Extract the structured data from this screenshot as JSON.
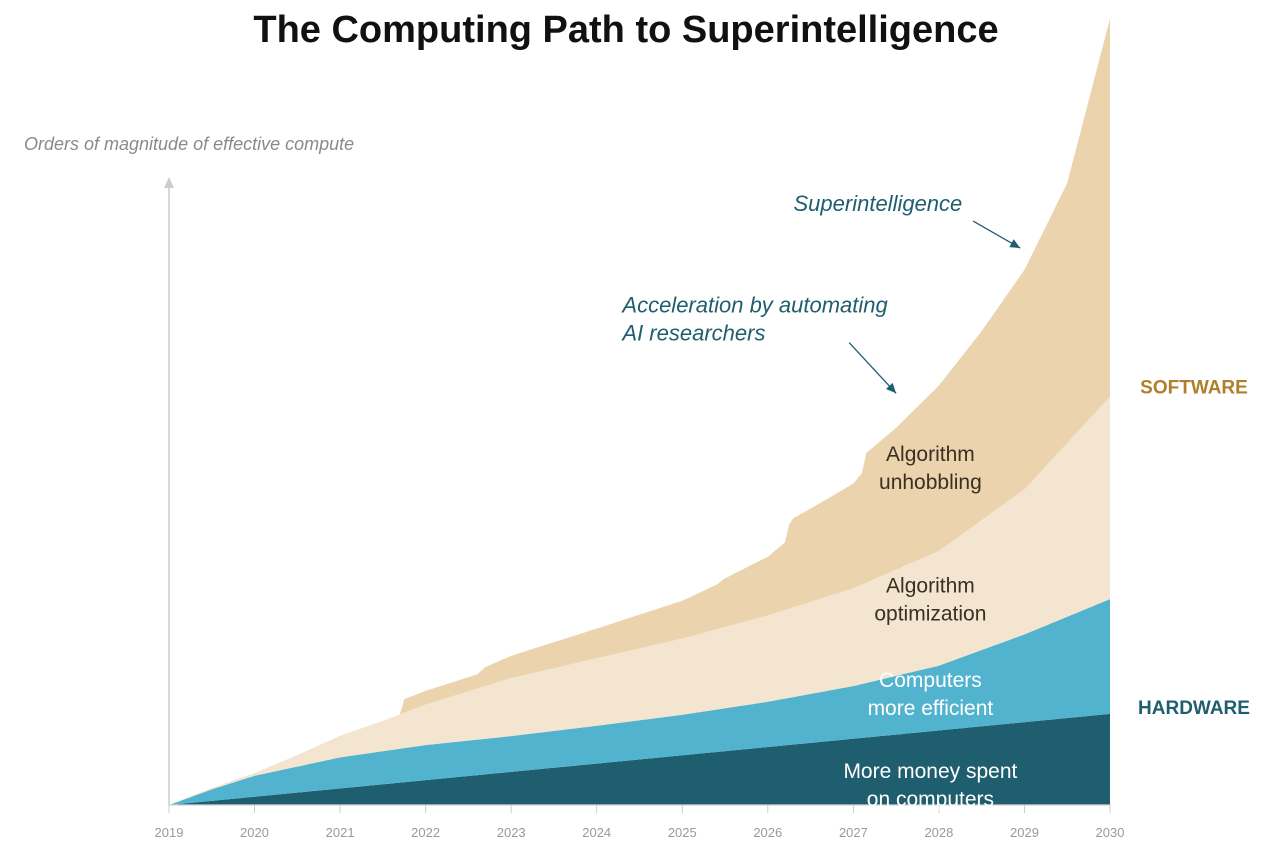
{
  "chart_data": {
    "type": "area",
    "title": "The Computing Path to Superintelligence",
    "ylabel": "Orders of magnitude of effective compute",
    "xlabel": "",
    "x_ticks": [
      "2019",
      "2020",
      "2021",
      "2022",
      "2023",
      "2024",
      "2025",
      "2026",
      "2027",
      "2028",
      "2029",
      "2030"
    ],
    "xlim": [
      2019,
      2030
    ],
    "ylim": [
      0,
      10
    ],
    "stacked": true,
    "grid": false,
    "series": [
      {
        "name": "More money spent on computers",
        "label_lines": [
          "More money spent",
          "on computers"
        ],
        "color": "#1f5e6e",
        "text_color": "#ffffff",
        "label_x": 2027.9,
        "label_y": 0.4,
        "x": [
          2019,
          2030
        ],
        "values": [
          0,
          1.35
        ]
      },
      {
        "name": "Computers more efficient",
        "label_lines": [
          "Computers",
          "more efficient"
        ],
        "color": "#52b3ce",
        "text_color": "#ffffff",
        "label_x": 2027.9,
        "label_y": 1.75,
        "x": [
          2019,
          2019.5,
          2020,
          2021,
          2022,
          2023,
          2024,
          2025,
          2026,
          2027,
          2028,
          2029,
          2030
        ],
        "values": [
          0,
          0.17,
          0.31,
          0.46,
          0.52,
          0.53,
          0.56,
          0.6,
          0.67,
          0.78,
          0.96,
          1.3,
          1.7
        ]
      },
      {
        "name": "Algorithm optimization",
        "label_lines": [
          "Algorithm",
          "optimization"
        ],
        "color": "#f3e5cf",
        "text_color": "#3a2f22",
        "label_x": 2027.9,
        "label_y": 3.15,
        "x": [
          2019,
          2020,
          2020.5,
          2021,
          2021.5,
          2022,
          2023,
          2024,
          2025,
          2026,
          2027,
          2028,
          2029,
          2030
        ],
        "values": [
          0,
          0.04,
          0.17,
          0.32,
          0.45,
          0.6,
          0.86,
          1.0,
          1.13,
          1.28,
          1.45,
          1.7,
          2.15,
          3.0
        ]
      },
      {
        "name": "Algorithm unhobbling",
        "label_lines": [
          "Algorithm",
          "unhobbling"
        ],
        "color": "#ebd3ae",
        "text_color": "#3a2f22",
        "label_x": 2027.9,
        "label_y": 5.1,
        "x": [
          2021.7,
          2021.75,
          2022.6,
          2022.7,
          2023,
          2024,
          2025,
          2025.4,
          2025.5,
          2026,
          2026.2,
          2026.25,
          2026.3,
          2026.5,
          2027,
          2027.1,
          2027.15,
          2027.5,
          2028,
          2028.5,
          2029,
          2029.5,
          2030
        ],
        "values": [
          0,
          0.2,
          0.21,
          0.28,
          0.33,
          0.44,
          0.56,
          0.66,
          0.72,
          0.87,
          1.0,
          1.25,
          1.32,
          1.38,
          1.55,
          1.65,
          1.92,
          2.1,
          2.45,
          2.8,
          3.25,
          3.85,
          5.6
        ]
      }
    ],
    "annotations": [
      {
        "lines": [
          "Superintelligence"
        ],
        "color": "#1f5e6e",
        "text_x": 2026.3,
        "text_y": 8.8,
        "arrow_from": [
          2028.4,
          8.65
        ],
        "arrow_to": [
          2028.95,
          8.25
        ]
      },
      {
        "lines": [
          "Acceleration by automating",
          "AI researchers"
        ],
        "color": "#1f5e6e",
        "text_x": 2024.3,
        "text_y": 7.3,
        "arrow_from": [
          2026.95,
          6.85
        ],
        "arrow_to": [
          2027.5,
          6.1
        ]
      }
    ],
    "side_labels": [
      {
        "text": "SOFTWARE",
        "color": "#b07f2a",
        "y": 6.1
      },
      {
        "text": "HARDWARE",
        "color": "#1f5e6e",
        "y": 1.35
      }
    ]
  }
}
